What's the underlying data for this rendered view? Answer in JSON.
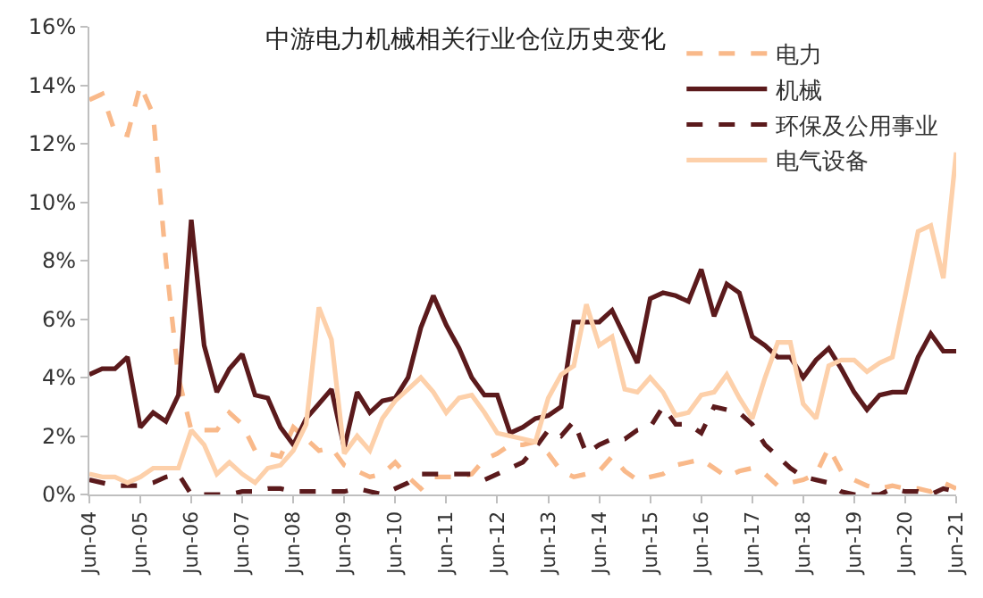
{
  "chart_data": {
    "type": "line",
    "title": "中游电力机械相关行业仓位历史变化",
    "x": [
      "2004-06",
      "2004-09",
      "2004-12",
      "2005-03",
      "2005-06",
      "2005-09",
      "2005-12",
      "2006-03",
      "2006-06",
      "2006-09",
      "2006-12",
      "2007-03",
      "2007-06",
      "2007-09",
      "2007-12",
      "2008-03",
      "2008-06",
      "2008-09",
      "2008-12",
      "2009-03",
      "2009-06",
      "2009-09",
      "2009-12",
      "2010-03",
      "2010-06",
      "2010-09",
      "2010-12",
      "2011-03",
      "2011-06",
      "2011-09",
      "2011-12",
      "2012-03",
      "2012-06",
      "2012-09",
      "2012-12",
      "2013-03",
      "2013-06",
      "2013-09",
      "2013-12",
      "2014-03",
      "2014-06",
      "2014-09",
      "2014-12",
      "2015-03",
      "2015-06",
      "2015-09",
      "2015-12",
      "2016-03",
      "2016-06",
      "2016-09",
      "2016-12",
      "2017-03",
      "2017-06",
      "2017-09",
      "2017-12",
      "2018-03",
      "2018-06",
      "2018-09",
      "2018-12",
      "2019-03",
      "2019-06",
      "2019-09",
      "2019-12",
      "2020-03",
      "2020-06",
      "2020-09",
      "2020-12",
      "2021-03",
      "2021-06"
    ],
    "series": [
      {
        "name": "电力",
        "color": "#f9b98a",
        "line_style": "dashed",
        "values": [
          13.5,
          13.7,
          12.4,
          12.3,
          14.0,
          13.0,
          8.0,
          4.0,
          2.2,
          2.2,
          2.2,
          2.8,
          2.4,
          1.5,
          1.4,
          1.3,
          2.3,
          1.9,
          1.5,
          1.6,
          1.0,
          0.8,
          0.6,
          0.7,
          1.1,
          0.6,
          0.2,
          0.6,
          0.6,
          0.6,
          0.7,
          1.2,
          1.4,
          1.7,
          1.7,
          1.8,
          1.4,
          0.8,
          0.6,
          0.7,
          0.8,
          1.3,
          0.8,
          0.5,
          0.6,
          0.7,
          1.0,
          1.1,
          1.2,
          0.9,
          0.6,
          0.8,
          0.9,
          0.7,
          0.3,
          0.4,
          0.5,
          0.7,
          1.6,
          0.8,
          0.5,
          0.3,
          0.2,
          0.3,
          0.2,
          0.2,
          0.1,
          0.4,
          0.2
        ]
      },
      {
        "name": "机械",
        "color": "#5b1a1c",
        "line_style": "solid",
        "values": [
          4.1,
          4.3,
          4.3,
          4.7,
          2.3,
          2.8,
          2.5,
          3.4,
          9.4,
          5.1,
          3.5,
          4.3,
          4.8,
          3.4,
          3.3,
          2.3,
          1.7,
          2.6,
          3.1,
          3.6,
          1.6,
          3.5,
          2.8,
          3.2,
          3.3,
          4.0,
          5.7,
          6.8,
          5.8,
          5.0,
          4.0,
          3.4,
          3.4,
          2.1,
          2.3,
          2.6,
          2.7,
          3.0,
          5.9,
          5.9,
          5.9,
          6.3,
          5.4,
          4.5,
          6.7,
          6.9,
          6.8,
          6.6,
          7.7,
          6.1,
          7.2,
          6.9,
          5.4,
          5.1,
          4.7,
          4.7,
          4.0,
          4.6,
          5.0,
          4.3,
          3.5,
          2.9,
          3.4,
          3.5,
          3.5,
          4.7,
          5.5,
          4.9,
          4.9
        ]
      },
      {
        "name": "环保及公用事业",
        "color": "#5b1a1c",
        "line_style": "dashed",
        "values": [
          0.5,
          0.4,
          0.3,
          0.3,
          0.3,
          0.4,
          0.6,
          0.7,
          0.0,
          0.0,
          0.0,
          0.0,
          0.1,
          0.1,
          0.2,
          0.2,
          0.1,
          0.1,
          0.1,
          0.1,
          0.1,
          0.2,
          0.1,
          0.0,
          0.2,
          0.4,
          0.7,
          0.7,
          0.7,
          0.7,
          0.7,
          0.5,
          0.7,
          0.9,
          1.1,
          1.6,
          2.2,
          2.0,
          2.5,
          1.4,
          1.7,
          1.9,
          1.9,
          2.2,
          2.3,
          3.0,
          2.4,
          2.4,
          2.1,
          3.0,
          2.9,
          2.8,
          2.4,
          1.7,
          1.3,
          0.9,
          0.6,
          0.5,
          0.4,
          0.1,
          0.0,
          0.0,
          0.0,
          0.2,
          0.1,
          0.1,
          0.0,
          0.2,
          0.1
        ]
      },
      {
        "name": "电气设备",
        "color": "#fdd0aa",
        "line_style": "solid",
        "values": [
          0.7,
          0.6,
          0.6,
          0.4,
          0.6,
          0.9,
          0.9,
          0.9,
          2.2,
          1.7,
          0.7,
          1.1,
          0.7,
          0.4,
          0.9,
          1.0,
          1.5,
          2.4,
          6.4,
          5.3,
          1.4,
          2.0,
          1.5,
          2.6,
          3.2,
          3.6,
          4.0,
          3.5,
          2.8,
          3.3,
          3.4,
          2.8,
          2.1,
          2.0,
          1.9,
          1.8,
          3.3,
          4.1,
          4.4,
          6.5,
          5.1,
          5.4,
          3.6,
          3.5,
          4.0,
          3.5,
          2.7,
          2.8,
          3.4,
          3.5,
          4.1,
          3.3,
          2.6,
          4.0,
          5.2,
          5.2,
          3.1,
          2.6,
          4.4,
          4.6,
          4.6,
          4.2,
          4.5,
          4.7,
          6.8,
          9.0,
          9.2,
          7.4,
          11.7
        ]
      }
    ],
    "xlim": [
      "2004-06",
      "2021-06"
    ],
    "xticks": [
      {
        "value": "2004-06",
        "label": "Jun-04"
      },
      {
        "value": "2005-06",
        "label": "Jun-05"
      },
      {
        "value": "2006-06",
        "label": "Jun-06"
      },
      {
        "value": "2007-06",
        "label": "Jun-07"
      },
      {
        "value": "2008-06",
        "label": "Jun-08"
      },
      {
        "value": "2009-06",
        "label": "Jun-09"
      },
      {
        "value": "2010-06",
        "label": "Jun-10"
      },
      {
        "value": "2011-06",
        "label": "Jun-11"
      },
      {
        "value": "2012-06",
        "label": "Jun-12"
      },
      {
        "value": "2013-06",
        "label": "Jun-13"
      },
      {
        "value": "2014-06",
        "label": "Jun-14"
      },
      {
        "value": "2015-06",
        "label": "Jun-15"
      },
      {
        "value": "2016-06",
        "label": "Jun-16"
      },
      {
        "value": "2017-06",
        "label": "Jun-17"
      },
      {
        "value": "2018-06",
        "label": "Jun-18"
      },
      {
        "value": "2019-06",
        "label": "Jun-19"
      },
      {
        "value": "2020-06",
        "label": "Jun-20"
      },
      {
        "value": "2021-06",
        "label": "Jun-21"
      }
    ],
    "ylim": [
      0,
      16
    ],
    "yticks": [
      {
        "value": 0,
        "label": "0%"
      },
      {
        "value": 2,
        "label": "2%"
      },
      {
        "value": 4,
        "label": "4%"
      },
      {
        "value": 6,
        "label": "6%"
      },
      {
        "value": 8,
        "label": "8%"
      },
      {
        "value": 10,
        "label": "10%"
      },
      {
        "value": 12,
        "label": "12%"
      },
      {
        "value": 14,
        "label": "14%"
      },
      {
        "value": 16,
        "label": "16%"
      }
    ],
    "grid": false,
    "legend": "top right"
  }
}
